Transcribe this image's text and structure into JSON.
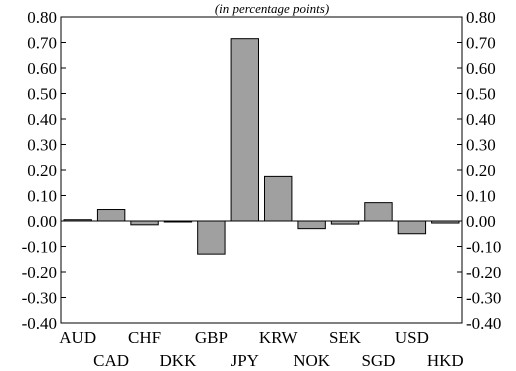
{
  "chart_data": {
    "type": "bar",
    "subtitle": "(in percentage points)",
    "categories": [
      "AUD",
      "CAD",
      "CHF",
      "DKK",
      "GBP",
      "JPY",
      "KRW",
      "NOK",
      "SEK",
      "SGD",
      "USD",
      "HKD"
    ],
    "values": [
      0.005,
      0.045,
      -0.015,
      -0.003,
      -0.13,
      0.715,
      0.175,
      -0.03,
      -0.012,
      0.072,
      -0.05,
      -0.008
    ],
    "ylim": [
      -0.4,
      0.8
    ],
    "yticks": [
      "0.80",
      "0.70",
      "0.60",
      "0.50",
      "0.40",
      "0.30",
      "0.20",
      "0.10",
      "0.00",
      "-0.10",
      "-0.20",
      "-0.30",
      "-0.40"
    ],
    "ytick_values": [
      0.8,
      0.7,
      0.6,
      0.5,
      0.4,
      0.3,
      0.2,
      0.1,
      0.0,
      -0.1,
      -0.2,
      -0.3,
      -0.4
    ],
    "grid": false,
    "bar_color": "#a0a0a0"
  }
}
